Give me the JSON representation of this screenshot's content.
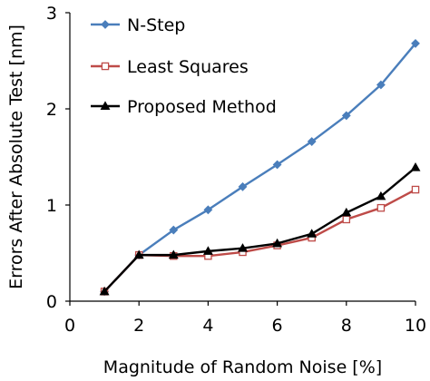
{
  "chart_data": {
    "type": "line",
    "title": "",
    "xlabel": "Magnitude of Random Noise [%]",
    "ylabel": "Errors After Absolute Test [nm]",
    "xlim": [
      0,
      10
    ],
    "ylim": [
      0,
      3
    ],
    "x_ticks": [
      "0",
      "2",
      "4",
      "6",
      "8",
      "10"
    ],
    "y_ticks": [
      "0",
      "1",
      "2",
      "3"
    ],
    "grid": false,
    "legend_position": "top-left",
    "series": [
      {
        "name": "N-Step",
        "color": "#4a7ebb",
        "marker": "diamond",
        "x": [
          1,
          2,
          3,
          4,
          5,
          6,
          7,
          8,
          9,
          10
        ],
        "y": [
          0.1,
          0.48,
          0.74,
          0.95,
          1.19,
          1.42,
          1.66,
          1.93,
          2.25,
          2.68
        ]
      },
      {
        "name": "Least Squares",
        "color": "#be4b48",
        "marker": "square-open",
        "x": [
          1,
          2,
          3,
          4,
          5,
          6,
          7,
          8,
          9,
          10
        ],
        "y": [
          0.1,
          0.48,
          0.47,
          0.47,
          0.51,
          0.58,
          0.66,
          0.85,
          0.97,
          1.16
        ]
      },
      {
        "name": "Proposed Method",
        "color": "#000000",
        "marker": "triangle",
        "x": [
          1,
          2,
          3,
          4,
          5,
          6,
          7,
          8,
          9,
          10
        ],
        "y": [
          0.1,
          0.48,
          0.48,
          0.52,
          0.55,
          0.6,
          0.7,
          0.92,
          1.09,
          1.39
        ]
      }
    ]
  }
}
